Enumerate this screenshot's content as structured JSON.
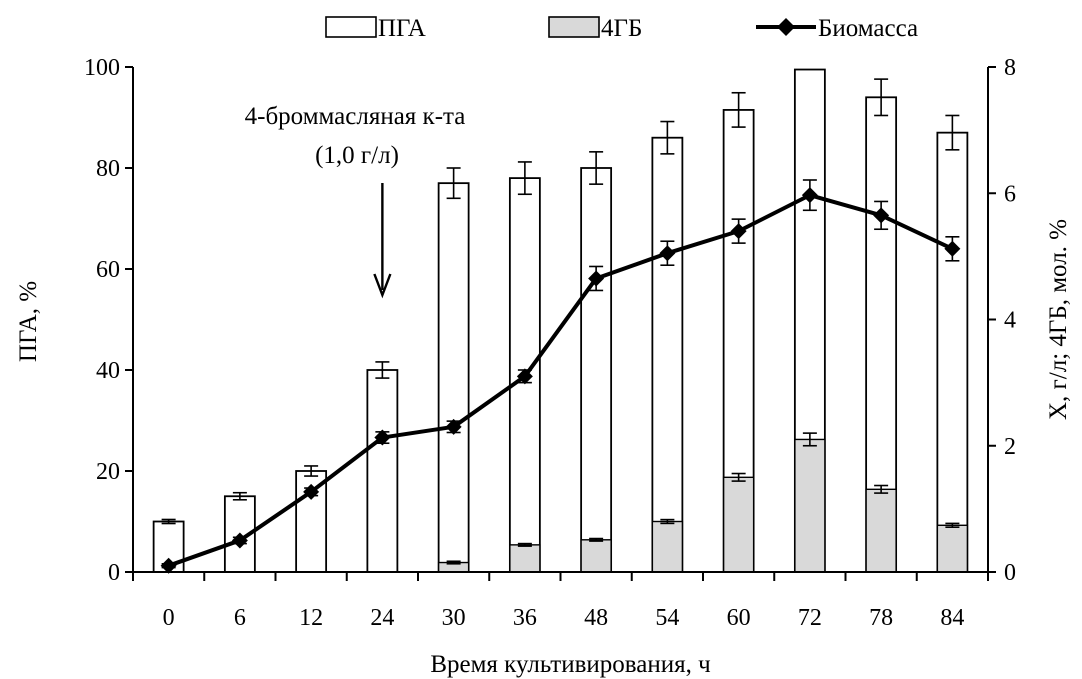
{
  "chart_data": {
    "type": "bar",
    "categories": [
      "0",
      "6",
      "12",
      "24",
      "30",
      "36",
      "48",
      "54",
      "60",
      "72",
      "78",
      "84"
    ],
    "series": [
      {
        "name": "ПГА",
        "kind": "bar",
        "axis": "left",
        "color": "#ffffff",
        "values": [
          10,
          15,
          20,
          40,
          77,
          78,
          80,
          86,
          91.5,
          99.5,
          94,
          87
        ],
        "errors": [
          0.4,
          0.7,
          1.0,
          1.6,
          3.0,
          3.2,
          3.2,
          3.2,
          3.4,
          0.0,
          3.6,
          3.4
        ]
      },
      {
        "name": "4ГБ",
        "kind": "bar",
        "axis": "right",
        "color": "#d9d9d9",
        "values": [
          0,
          0,
          0,
          0,
          0.15,
          0.43,
          0.51,
          0.8,
          1.5,
          2.1,
          1.31,
          0.74
        ],
        "errors": [
          0,
          0,
          0,
          0,
          0.02,
          0.02,
          0.02,
          0.03,
          0.06,
          0.1,
          0.06,
          0.03
        ]
      },
      {
        "name": "Биомасса",
        "kind": "line",
        "axis": "right",
        "color": "#000000",
        "values": [
          0.1,
          0.5,
          1.27,
          2.13,
          2.3,
          3.1,
          4.65,
          5.05,
          5.4,
          5.97,
          5.65,
          5.12
        ],
        "errors": [
          0.03,
          0.05,
          0.06,
          0.09,
          0.09,
          0.1,
          0.19,
          0.19,
          0.19,
          0.24,
          0.22,
          0.19
        ]
      }
    ],
    "xlabel": "Время культивирования, ч",
    "ylabel": "ПГА, %",
    "ylabel_right": "X, г/л;   4ГБ, мол. %",
    "ylim": [
      0,
      100
    ],
    "ylim_right": [
      0,
      8
    ],
    "yticks": [
      0,
      20,
      40,
      60,
      80,
      100
    ],
    "yticks_right": [
      0,
      2,
      4,
      6,
      8
    ],
    "legend_position": "top",
    "grid": false,
    "annotation": {
      "line1": "4-броммасляная к-та",
      "line2": "(1,0 г/л)",
      "category": "24",
      "arrow": "down"
    }
  }
}
